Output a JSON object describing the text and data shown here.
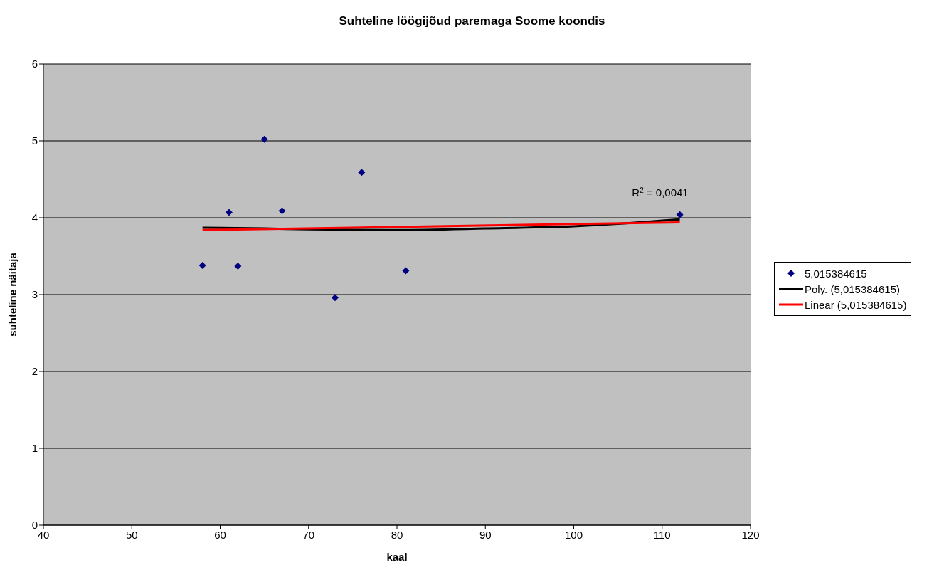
{
  "chart_data": {
    "type": "scatter",
    "title": "Suhteline löögijõud paremaga Soome koondis",
    "xlabel": "kaal",
    "ylabel": "suhteline näitaja",
    "x": [
      58,
      61,
      62,
      65,
      67,
      73,
      76,
      81,
      112
    ],
    "series": [
      {
        "name": "5,015384615",
        "color": "#000080",
        "marker": "diamond",
        "values": [
          3.38,
          4.07,
          3.37,
          5.02,
          4.09,
          2.96,
          4.59,
          3.31,
          4.04
        ]
      },
      {
        "name": "Poly. (5,015384615)",
        "type": "line",
        "color": "#000000",
        "x": [
          58,
          65,
          70,
          80,
          90,
          100,
          112
        ],
        "values": [
          3.87,
          3.86,
          3.85,
          3.84,
          3.86,
          3.89,
          3.98
        ]
      },
      {
        "name": "Linear (5,015384615)",
        "type": "line",
        "color": "#ff0000",
        "x": [
          58,
          112
        ],
        "values": [
          3.84,
          3.94
        ]
      }
    ],
    "annotations": [
      "R$^{2}$ = 0,0041"
    ],
    "xlim": [
      40,
      120
    ],
    "xticks": [
      40,
      50,
      60,
      70,
      80,
      90,
      100,
      110,
      120
    ],
    "ylim": [
      0,
      6
    ],
    "yticks": [
      0,
      1,
      2,
      3,
      4,
      5,
      6
    ],
    "grid": "y",
    "legend": "right"
  }
}
